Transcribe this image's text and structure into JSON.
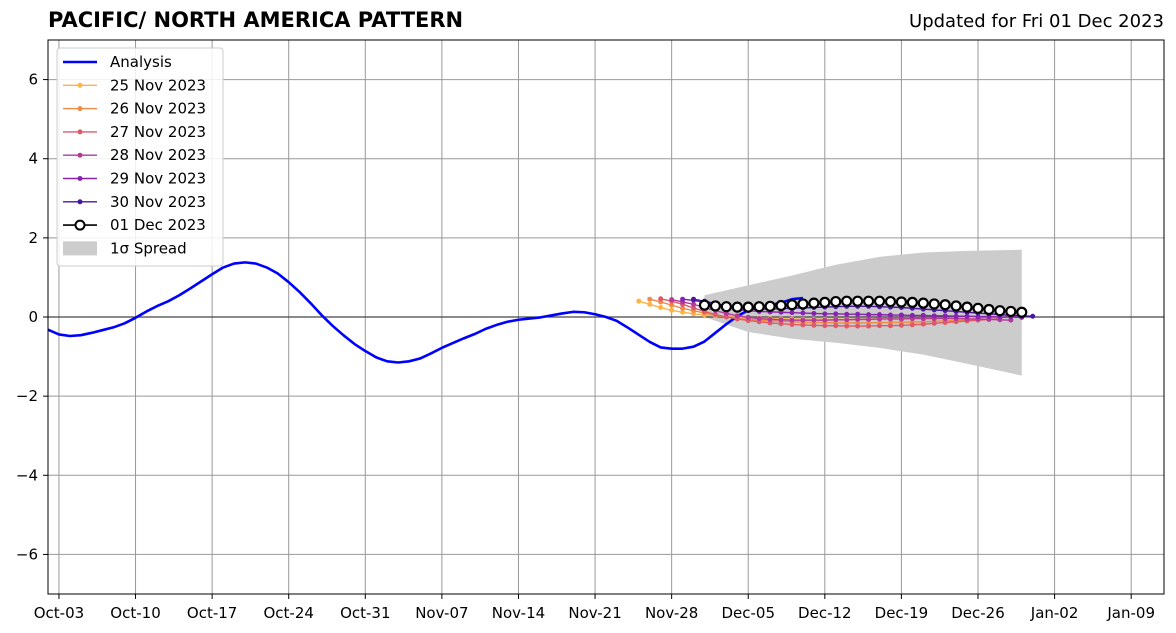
{
  "header": {
    "title": "PACIFIC/ NORTH AMERICA PATTERN",
    "updated": "Updated for Fri 01 Dec 2023"
  },
  "chart_data": {
    "type": "line",
    "title": "PACIFIC/ NORTH AMERICA PATTERN",
    "subtitle": "Updated for Fri 01 Dec 2023",
    "xlabel": "",
    "ylabel": "",
    "xlim": [
      "2023-10-02",
      "2024-01-12"
    ],
    "ylim": [
      -7,
      7
    ],
    "yticks": [
      -6,
      -4,
      -2,
      0,
      2,
      4,
      6
    ],
    "ytick_labels": [
      "−6",
      "−4",
      "−2",
      "0",
      "2",
      "4",
      "6"
    ],
    "xticks": [
      "2023-10-03",
      "2023-10-10",
      "2023-10-17",
      "2023-10-24",
      "2023-10-31",
      "2023-11-07",
      "2023-11-14",
      "2023-11-21",
      "2023-11-28",
      "2023-12-05",
      "2023-12-12",
      "2023-12-19",
      "2023-12-26",
      "2024-01-02",
      "2024-01-09"
    ],
    "xtick_labels": [
      "Oct-03",
      "Oct-10",
      "Oct-17",
      "Oct-24",
      "Oct-31",
      "Nov-07",
      "Nov-14",
      "Nov-21",
      "Nov-28",
      "Dec-05",
      "Dec-12",
      "Dec-19",
      "Dec-26",
      "Jan-02",
      "Jan-09"
    ],
    "grid": true,
    "legend_position": "upper-left",
    "zero_line": 0,
    "analysis": {
      "name": "Analysis",
      "color": "#0000ff",
      "start": "2023-10-02",
      "step_days": 1,
      "values": [
        -0.32,
        -0.44,
        -0.48,
        -0.46,
        -0.4,
        -0.33,
        -0.26,
        -0.16,
        -0.02,
        0.14,
        0.28,
        0.4,
        0.55,
        0.72,
        0.9,
        1.08,
        1.25,
        1.35,
        1.38,
        1.35,
        1.25,
        1.1,
        0.88,
        0.63,
        0.35,
        0.05,
        -0.22,
        -0.46,
        -0.68,
        -0.86,
        -1.02,
        -1.12,
        -1.15,
        -1.12,
        -1.05,
        -0.92,
        -0.78,
        -0.66,
        -0.54,
        -0.43,
        -0.3,
        -0.2,
        -0.12,
        -0.07,
        -0.04,
        -0.01,
        0.04,
        0.09,
        0.13,
        0.12,
        0.07,
        0.0,
        -0.1,
        -0.27,
        -0.45,
        -0.63,
        -0.77,
        -0.8,
        -0.8,
        -0.75,
        -0.62,
        -0.4,
        -0.18,
        0.02,
        0.17,
        0.25,
        0.3,
        0.36,
        0.45,
        0.48
      ]
    },
    "forecasts": [
      {
        "name": "25 Nov 2023",
        "color": "#ffb347",
        "start": "2023-11-25",
        "step_days": 1,
        "values": [
          0.4,
          0.32,
          0.24,
          0.17,
          0.12,
          0.08,
          0.05,
          0.03,
          0.01,
          -0.01,
          -0.02,
          -0.03,
          -0.04,
          -0.05,
          -0.05,
          -0.06,
          -0.06,
          -0.06,
          -0.06,
          -0.06,
          -0.06,
          -0.05,
          -0.05,
          -0.05,
          -0.05,
          -0.04,
          -0.04,
          -0.03,
          -0.03,
          -0.02,
          -0.02,
          -0.01
        ]
      },
      {
        "name": "26 Nov 2023",
        "color": "#f08a45",
        "start": "2023-11-26",
        "step_days": 1,
        "values": [
          0.45,
          0.38,
          0.3,
          0.22,
          0.16,
          0.1,
          0.05,
          0.01,
          -0.03,
          -0.06,
          -0.08,
          -0.1,
          -0.11,
          -0.12,
          -0.13,
          -0.14,
          -0.14,
          -0.15,
          -0.15,
          -0.15,
          -0.15,
          -0.14,
          -0.14,
          -0.13,
          -0.13,
          -0.12,
          -0.11,
          -0.1,
          -0.09,
          -0.08,
          -0.07,
          -0.06
        ]
      },
      {
        "name": "27 Nov 2023",
        "color": "#dd5a6a",
        "start": "2023-11-27",
        "step_days": 1,
        "values": [
          0.46,
          0.4,
          0.32,
          0.23,
          0.14,
          0.06,
          0.0,
          -0.05,
          -0.09,
          -0.12,
          -0.15,
          -0.17,
          -0.19,
          -0.2,
          -0.21,
          -0.22,
          -0.22,
          -0.23,
          -0.23,
          -0.23,
          -0.22,
          -0.22,
          -0.21,
          -0.2,
          -0.18,
          -0.16,
          -0.14,
          -0.12,
          -0.1,
          -0.08,
          -0.06,
          -0.04
        ]
      },
      {
        "name": "28 Nov 2023",
        "color": "#b23a9a",
        "start": "2023-11-28",
        "step_days": 1,
        "values": [
          0.44,
          0.38,
          0.32,
          0.24,
          0.16,
          0.09,
          0.03,
          -0.01,
          -0.04,
          -0.06,
          -0.07,
          -0.08,
          -0.08,
          -0.08,
          -0.08,
          -0.07,
          -0.07,
          -0.06,
          -0.06,
          -0.05,
          -0.05,
          -0.05,
          -0.04,
          -0.04,
          -0.04,
          -0.04,
          -0.04,
          -0.05,
          -0.05,
          -0.06,
          -0.07,
          -0.08
        ]
      },
      {
        "name": "29 Nov 2023",
        "color": "#8822b0",
        "start": "2023-11-29",
        "step_days": 1,
        "values": [
          0.45,
          0.42,
          0.37,
          0.3,
          0.24,
          0.19,
          0.16,
          0.14,
          0.13,
          0.12,
          0.11,
          0.1,
          0.09,
          0.08,
          0.08,
          0.07,
          0.07,
          0.06,
          0.06,
          0.05,
          0.05,
          0.04,
          0.04,
          0.03,
          0.03,
          0.02,
          0.02,
          0.01,
          0.01,
          0.0,
          0.0,
          -0.01
        ]
      },
      {
        "name": "30 Nov 2023",
        "color": "#4a16a0",
        "start": "2023-11-30",
        "step_days": 1,
        "values": [
          0.45,
          0.4,
          0.34,
          0.28,
          0.24,
          0.21,
          0.2,
          0.2,
          0.21,
          0.22,
          0.23,
          0.24,
          0.25,
          0.26,
          0.27,
          0.27,
          0.27,
          0.26,
          0.25,
          0.24,
          0.22,
          0.2,
          0.18,
          0.16,
          0.14,
          0.12,
          0.1,
          0.08,
          0.06,
          0.04,
          0.03,
          0.02
        ]
      }
    ],
    "current_forecast": {
      "name": "01 Dec 2023",
      "color": "#000000",
      "marker_fill": "#ffffff",
      "start": "2023-12-01",
      "step_days": 1,
      "values": [
        0.3,
        0.28,
        0.26,
        0.25,
        0.25,
        0.26,
        0.27,
        0.29,
        0.31,
        0.33,
        0.35,
        0.37,
        0.39,
        0.4,
        0.4,
        0.4,
        0.4,
        0.39,
        0.38,
        0.37,
        0.35,
        0.33,
        0.31,
        0.28,
        0.25,
        0.22,
        0.19,
        0.16,
        0.14,
        0.12
      ]
    },
    "spread": {
      "name": "1σ Spread",
      "color": "#cccccc",
      "dates": [
        "2023-12-01",
        "2023-12-05",
        "2023-12-09",
        "2023-12-13",
        "2023-12-17",
        "2023-12-21",
        "2023-12-25",
        "2023-12-30"
      ],
      "upper": [
        0.55,
        0.8,
        1.05,
        1.32,
        1.52,
        1.63,
        1.67,
        1.7
      ],
      "lower": [
        0.0,
        -0.38,
        -0.55,
        -0.65,
        -0.78,
        -0.95,
        -1.18,
        -1.48
      ]
    }
  }
}
